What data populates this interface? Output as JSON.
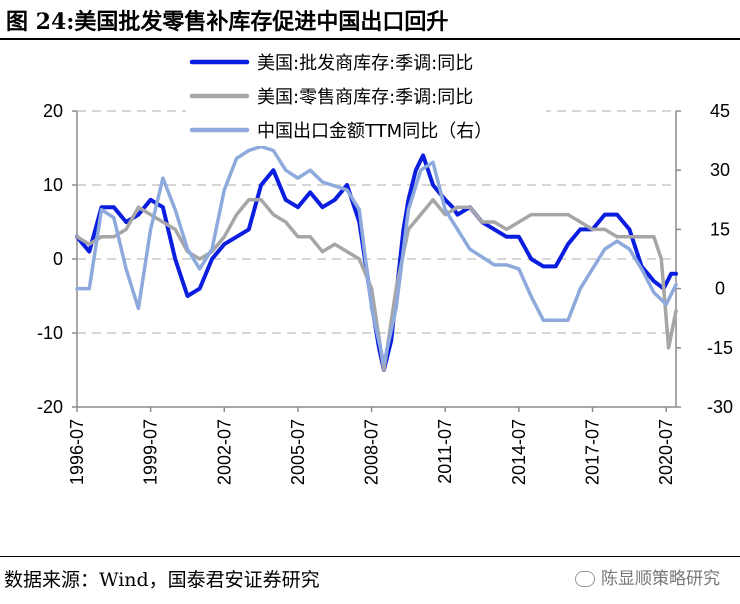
{
  "title": "图 24:美国批发零售补库存促进中国出口回升",
  "source": "数据来源：Wind，国泰君安证券研究",
  "watermark": "陈显顺策略研究",
  "chart_data": {
    "type": "line",
    "x_tick_labels": [
      "1996-07",
      "1999-07",
      "2002-07",
      "2005-07",
      "2008-07",
      "2011-07",
      "2014-07",
      "2017-07",
      "2020-07"
    ],
    "x_range": [
      1996.5,
      2020.9
    ],
    "left_axis": {
      "ylim": [
        -20,
        20
      ],
      "ticks": [
        -20,
        -10,
        0,
        10,
        20
      ]
    },
    "right_axis": {
      "ylim": [
        -30,
        45
      ],
      "ticks": [
        -30,
        -15,
        0,
        15,
        30,
        45
      ]
    },
    "grid": "horizontal dashed",
    "legend_position": "top-center",
    "series": [
      {
        "name": "美国:批发商库存:季调:同比",
        "color": "#0b1ee0",
        "axis": "left",
        "x": [
          1996.5,
          1997.0,
          1997.5,
          1998.0,
          1998.5,
          1999.0,
          1999.5,
          2000.0,
          2000.5,
          2001.0,
          2001.5,
          2002.0,
          2002.5,
          2003.0,
          2003.5,
          2004.0,
          2004.5,
          2005.0,
          2005.5,
          2006.0,
          2006.5,
          2007.0,
          2007.5,
          2008.0,
          2008.5,
          2008.8,
          2009.0,
          2009.3,
          2009.5,
          2009.8,
          2010.0,
          2010.3,
          2010.6,
          2011.0,
          2011.5,
          2011.8,
          2012.0,
          2012.5,
          2013.0,
          2013.5,
          2014.0,
          2014.5,
          2015.0,
          2015.5,
          2016.0,
          2016.5,
          2017.0,
          2017.5,
          2018.0,
          2018.5,
          2019.0,
          2019.5,
          2020.0,
          2020.4,
          2020.7,
          2020.9
        ],
        "values": [
          3,
          1,
          7,
          7,
          5,
          6,
          8,
          7,
          0,
          -5,
          -4,
          0,
          2,
          3,
          4,
          10,
          12,
          8,
          7,
          9,
          7,
          8,
          10,
          5,
          -6,
          -12,
          -15,
          -11,
          -5,
          4,
          8,
          12,
          14,
          10,
          8,
          7,
          6,
          7,
          5,
          4,
          3,
          3,
          0,
          -1,
          -1,
          2,
          4,
          4,
          6,
          6,
          4,
          -1,
          -3,
          -4,
          -2,
          -2
        ]
      },
      {
        "name": "美国:零售商库存:季调:同比",
        "color": "#a6a6a6",
        "axis": "left",
        "x": [
          1996.5,
          1997.0,
          1997.5,
          1998.0,
          1998.5,
          1999.0,
          1999.5,
          2000.0,
          2000.5,
          2001.0,
          2001.5,
          2002.0,
          2002.5,
          2003.0,
          2003.5,
          2004.0,
          2004.5,
          2005.0,
          2005.5,
          2006.0,
          2006.5,
          2007.0,
          2007.5,
          2008.0,
          2008.5,
          2009.0,
          2009.5,
          2010.0,
          2010.5,
          2011.0,
          2011.5,
          2012.0,
          2012.5,
          2013.0,
          2013.5,
          2014.0,
          2014.5,
          2015.0,
          2015.5,
          2016.0,
          2016.5,
          2017.0,
          2017.5,
          2018.0,
          2018.5,
          2019.0,
          2019.5,
          2020.0,
          2020.3,
          2020.6,
          2020.9
        ],
        "values": [
          3,
          2,
          3,
          3,
          4,
          7,
          6,
          5,
          4,
          1,
          0,
          1,
          3,
          6,
          8,
          8,
          6,
          5,
          3,
          3,
          1,
          2,
          1,
          0,
          -4,
          -15,
          -4,
          4,
          6,
          8,
          6,
          7,
          7,
          5,
          5,
          4,
          5,
          6,
          6,
          6,
          6,
          5,
          4,
          4,
          3,
          3,
          3,
          3,
          0,
          -12,
          -7
        ]
      },
      {
        "name": "中国出口金额TTM同比（右）",
        "color": "#8ea9db",
        "axis": "right",
        "x": [
          1996.5,
          1997.0,
          1997.5,
          1998.0,
          1998.5,
          1999.0,
          1999.5,
          2000.0,
          2000.5,
          2001.0,
          2001.5,
          2002.0,
          2002.5,
          2003.0,
          2003.5,
          2004.0,
          2004.5,
          2005.0,
          2005.5,
          2006.0,
          2006.5,
          2007.0,
          2007.5,
          2008.0,
          2008.5,
          2009.0,
          2009.5,
          2010.0,
          2010.5,
          2011.0,
          2011.5,
          2012.0,
          2012.5,
          2013.0,
          2013.5,
          2014.0,
          2014.5,
          2015.0,
          2015.5,
          2016.0,
          2016.5,
          2017.0,
          2017.5,
          2018.0,
          2018.5,
          2019.0,
          2019.5,
          2020.0,
          2020.5,
          2020.9
        ],
        "values": [
          0,
          0,
          20,
          18,
          5,
          -5,
          15,
          28,
          20,
          10,
          5,
          10,
          25,
          33,
          35,
          36,
          35,
          30,
          28,
          30,
          27,
          26,
          25,
          20,
          -5,
          -19,
          -5,
          20,
          30,
          32,
          20,
          15,
          10,
          8,
          6,
          6,
          5,
          -2,
          -8,
          -8,
          -8,
          0,
          5,
          10,
          12,
          10,
          5,
          -1,
          -4,
          1
        ]
      }
    ]
  }
}
